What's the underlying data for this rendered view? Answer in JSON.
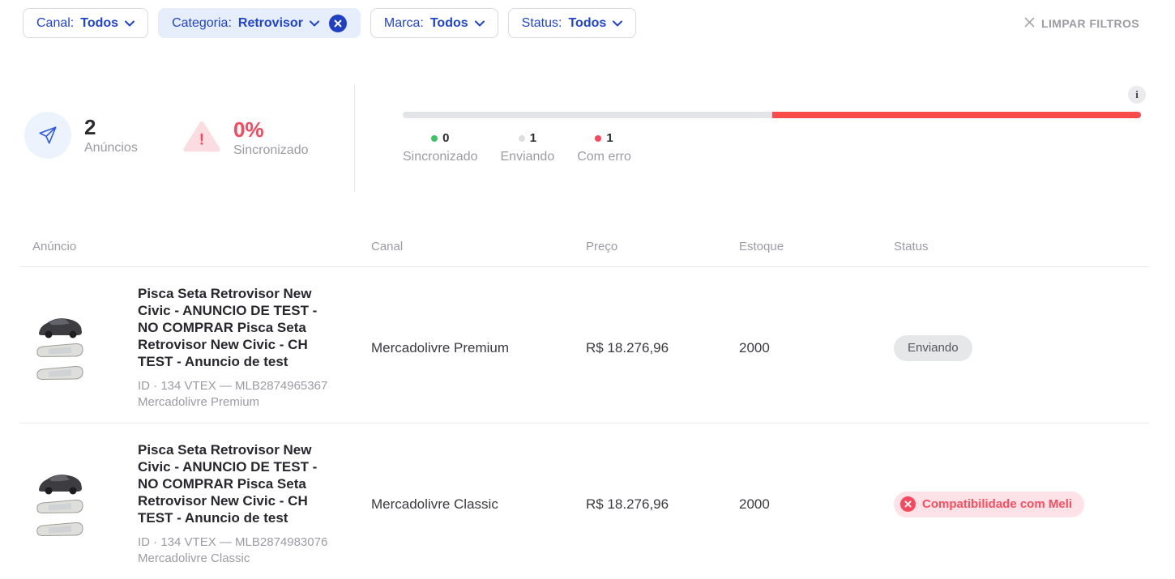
{
  "filters": {
    "chips": [
      {
        "label": "Canal:",
        "value": "Todos",
        "active": false
      },
      {
        "label": "Categoria:",
        "value": "Retrovisor",
        "active": true
      },
      {
        "label": "Marca:",
        "value": "Todos",
        "active": false
      },
      {
        "label": "Status:",
        "value": "Todos",
        "active": false
      }
    ],
    "clear_label": "LIMPAR FILTROS"
  },
  "summary": {
    "anuncios": {
      "value": "2",
      "label": "Anúncios"
    },
    "sincronizado": {
      "value": "0%",
      "label": "Sincronizado"
    },
    "info_glyph": "i",
    "warning_glyph": "!",
    "progress": {
      "segments": [
        {
          "name": "enviando",
          "pct": 50,
          "color": "#e3e4e7"
        },
        {
          "name": "com-erro",
          "pct": 50,
          "color": "#fa4b4b"
        }
      ]
    },
    "legend": [
      {
        "count": "0",
        "label": "Sincronizado",
        "color": "#3fc264"
      },
      {
        "count": "1",
        "label": "Enviando",
        "color": "#dfdfe3"
      },
      {
        "count": "1",
        "label": "Com erro",
        "color": "#f8485e"
      }
    ]
  },
  "table": {
    "headers": [
      "Anúncio",
      "Canal",
      "Preço",
      "Estoque",
      "Status"
    ],
    "rows": [
      {
        "title": "Pisca Seta Retrovisor New Civic - ANUNCIO DE TEST - NO COMPRAR Pisca Seta Retrovisor New Civic - CH TEST - Anuncio de test",
        "id_line": "ID · 134 VTEX — MLB2874965367",
        "channel_line": "Mercadolivre Premium",
        "canal": "Mercadolivre Premium",
        "preco": "R$ 18.276,96",
        "estoque": "2000",
        "status": {
          "label": "Enviando",
          "type": "sending"
        }
      },
      {
        "title": "Pisca Seta Retrovisor New Civic - ANUNCIO DE TEST - NO COMPRAR Pisca Seta Retrovisor New Civic - CH TEST - Anuncio de test",
        "id_line": "ID · 134 VTEX — MLB2874983076",
        "channel_line": "Mercadolivre Classic",
        "canal": "Mercadolivre Classic",
        "preco": "R$ 18.276,96",
        "estoque": "2000",
        "status": {
          "label": "Compatibilidade com Meli",
          "type": "error"
        }
      }
    ]
  }
}
